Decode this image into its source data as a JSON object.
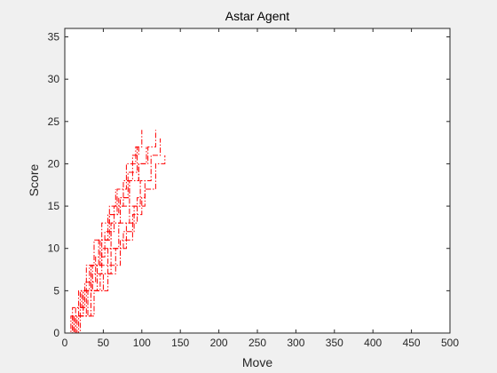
{
  "chart_data": {
    "type": "line",
    "title": "Astar Agent",
    "xlabel": "Move",
    "ylabel": "Score",
    "xlim": [
      0,
      500
    ],
    "ylim": [
      0,
      36
    ],
    "xticks": [
      0,
      50,
      100,
      150,
      200,
      250,
      300,
      350,
      400,
      450,
      500
    ],
    "yticks": [
      0,
      5,
      10,
      15,
      20,
      25,
      30,
      35
    ],
    "grid": false,
    "line_color": "#ff0000",
    "line_style": "dash-dot",
    "series": [
      {
        "x": [
          0,
          12,
          24,
          36,
          48,
          60,
          72,
          84,
          96,
          108,
          118
        ],
        "y": [
          0,
          2,
          5,
          8,
          11,
          13,
          16,
          18,
          20,
          22,
          24
        ]
      },
      {
        "x": [
          0,
          14,
          28,
          42,
          56,
          70,
          84,
          98,
          112,
          124
        ],
        "y": [
          0,
          2,
          5,
          8,
          10,
          13,
          15,
          18,
          21,
          23
        ]
      },
      {
        "x": [
          0,
          16,
          30,
          46,
          60,
          76,
          90,
          104,
          118,
          130
        ],
        "y": [
          0,
          2,
          5,
          7,
          10,
          12,
          15,
          17,
          20,
          21
        ]
      },
      {
        "x": [
          0,
          10,
          20,
          32,
          44,
          56,
          68,
          80,
          92,
          100
        ],
        "y": [
          0,
          2,
          5,
          8,
          11,
          14,
          17,
          20,
          22,
          24
        ]
      },
      {
        "x": [
          0,
          12,
          24,
          36,
          48,
          60,
          72,
          84,
          96,
          106
        ],
        "y": [
          0,
          2,
          5,
          7,
          10,
          13,
          15,
          18,
          20,
          22
        ]
      },
      {
        "x": [
          0,
          18,
          34,
          50,
          66,
          80,
          94,
          104
        ],
        "y": [
          0,
          2,
          5,
          7,
          10,
          13,
          16,
          18
        ]
      },
      {
        "x": [
          0,
          8,
          18,
          28,
          38,
          48,
          58,
          66
        ],
        "y": [
          0,
          2,
          5,
          8,
          11,
          13,
          15,
          17
        ]
      },
      {
        "x": [
          0,
          20,
          38,
          56,
          72,
          88,
          100
        ],
        "y": [
          0,
          2,
          5,
          8,
          11,
          14,
          16
        ]
      },
      {
        "x": [
          0,
          14,
          26,
          40,
          52,
          64,
          76,
          88,
          96
        ],
        "y": [
          0,
          3,
          6,
          9,
          12,
          15,
          18,
          21,
          22
        ]
      },
      {
        "x": [
          0,
          10,
          22,
          34,
          46,
          58,
          70,
          82,
          94
        ],
        "y": [
          0,
          3,
          5,
          8,
          11,
          14,
          16,
          19,
          22
        ]
      }
    ]
  }
}
